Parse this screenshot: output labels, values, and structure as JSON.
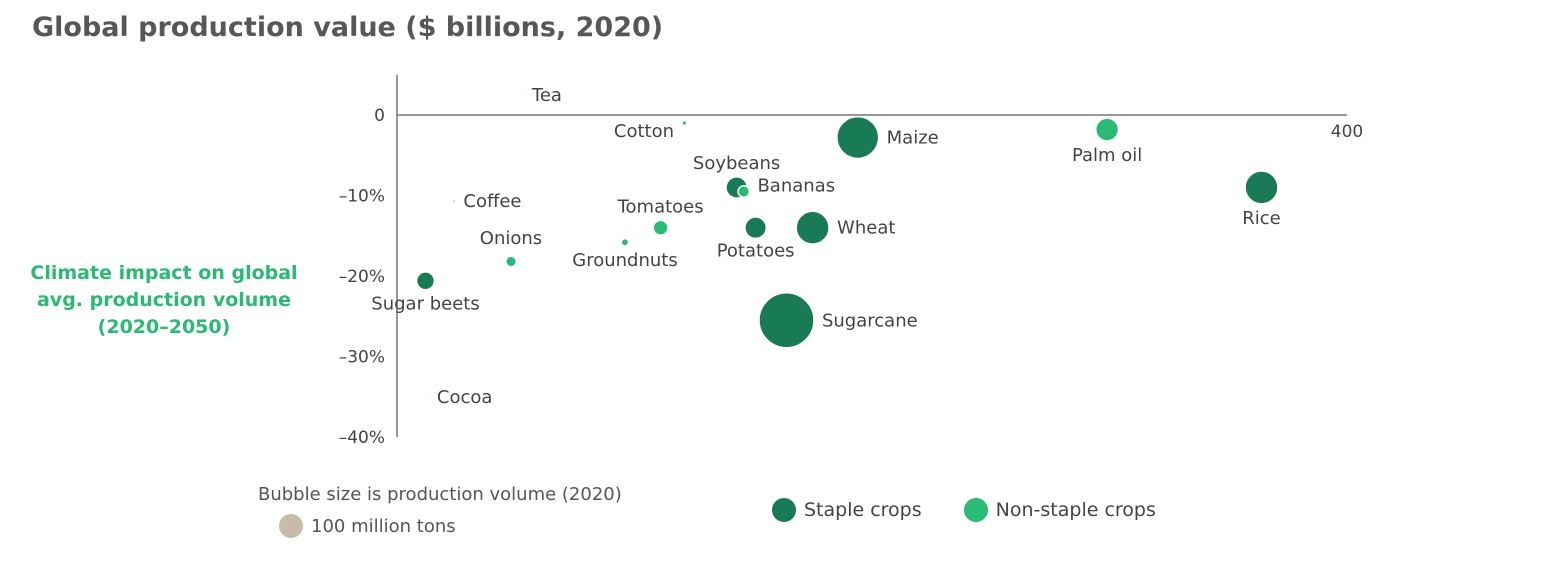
{
  "chart_data": {
    "type": "scatter",
    "title": "Global production value ($ billions, 2020)",
    "ylabel_lines": [
      "Climate impact on global",
      "avg. production volume",
      "(2020–2050)"
    ],
    "x_ticks": [
      {
        "value": 0,
        "label": ""
      },
      {
        "value": 400,
        "label": "400"
      }
    ],
    "y_ticks": [
      {
        "value": 0,
        "label": "0"
      },
      {
        "value": -10,
        "label": "–10%"
      },
      {
        "value": -20,
        "label": "–20%"
      },
      {
        "value": -30,
        "label": "–30%"
      },
      {
        "value": -40,
        "label": "–40%"
      }
    ],
    "xlim": [
      0,
      400
    ],
    "ylim": [
      -40,
      5
    ],
    "size_note": "Bubble size is production volume (2020)",
    "size_reference": {
      "label": "100 million tons",
      "volume_million_tons": 100,
      "color": "#c8bca8"
    },
    "series": [
      {
        "name": "Staple crops",
        "color": "#197a56"
      },
      {
        "name": "Non-staple crops",
        "color": "#29ba74"
      }
    ],
    "points": [
      {
        "name": "Tea",
        "x": 53,
        "y": 2.5,
        "volume_million_tons": 6,
        "series": 1
      },
      {
        "name": "Cotton",
        "x": 121,
        "y": -1,
        "volume_million_tons": 25,
        "series": 1
      },
      {
        "name": "Maize",
        "x": 194,
        "y": -2.8,
        "volume_million_tons": 1160,
        "series": 0
      },
      {
        "name": "Palm oil",
        "x": 299,
        "y": -1.8,
        "volume_million_tons": 400,
        "series": 1
      },
      {
        "name": "Soybeans",
        "x": 143,
        "y": -9,
        "volume_million_tons": 355,
        "series": 0
      },
      {
        "name": "Bananas",
        "x": 146,
        "y": -9.5,
        "volume_million_tons": 120,
        "series": 1
      },
      {
        "name": "Rice",
        "x": 364,
        "y": -9,
        "volume_million_tons": 760,
        "series": 0
      },
      {
        "name": "Coffee",
        "x": 24,
        "y": -10.7,
        "volume_million_tons": 10,
        "series": 1
      },
      {
        "name": "Tomatoes",
        "x": 111,
        "y": -14,
        "volume_million_tons": 187,
        "series": 1
      },
      {
        "name": "Potatoes",
        "x": 151,
        "y": -14,
        "volume_million_tons": 360,
        "series": 0
      },
      {
        "name": "Wheat",
        "x": 175,
        "y": -14,
        "volume_million_tons": 760,
        "series": 0
      },
      {
        "name": "Groundnuts",
        "x": 96,
        "y": -15.8,
        "volume_million_tons": 54,
        "series": 1
      },
      {
        "name": "Onions",
        "x": 48,
        "y": -18.2,
        "volume_million_tons": 105,
        "series": 1
      },
      {
        "name": "Sugar beets",
        "x": 12,
        "y": -20.6,
        "volume_million_tons": 260,
        "series": 0
      },
      {
        "name": "Sugarcane",
        "x": 164,
        "y": -25.5,
        "volume_million_tons": 1870,
        "series": 0
      },
      {
        "name": "Cocoa",
        "x": 13,
        "y": -35,
        "volume_million_tons": 6,
        "series": 1
      }
    ]
  }
}
